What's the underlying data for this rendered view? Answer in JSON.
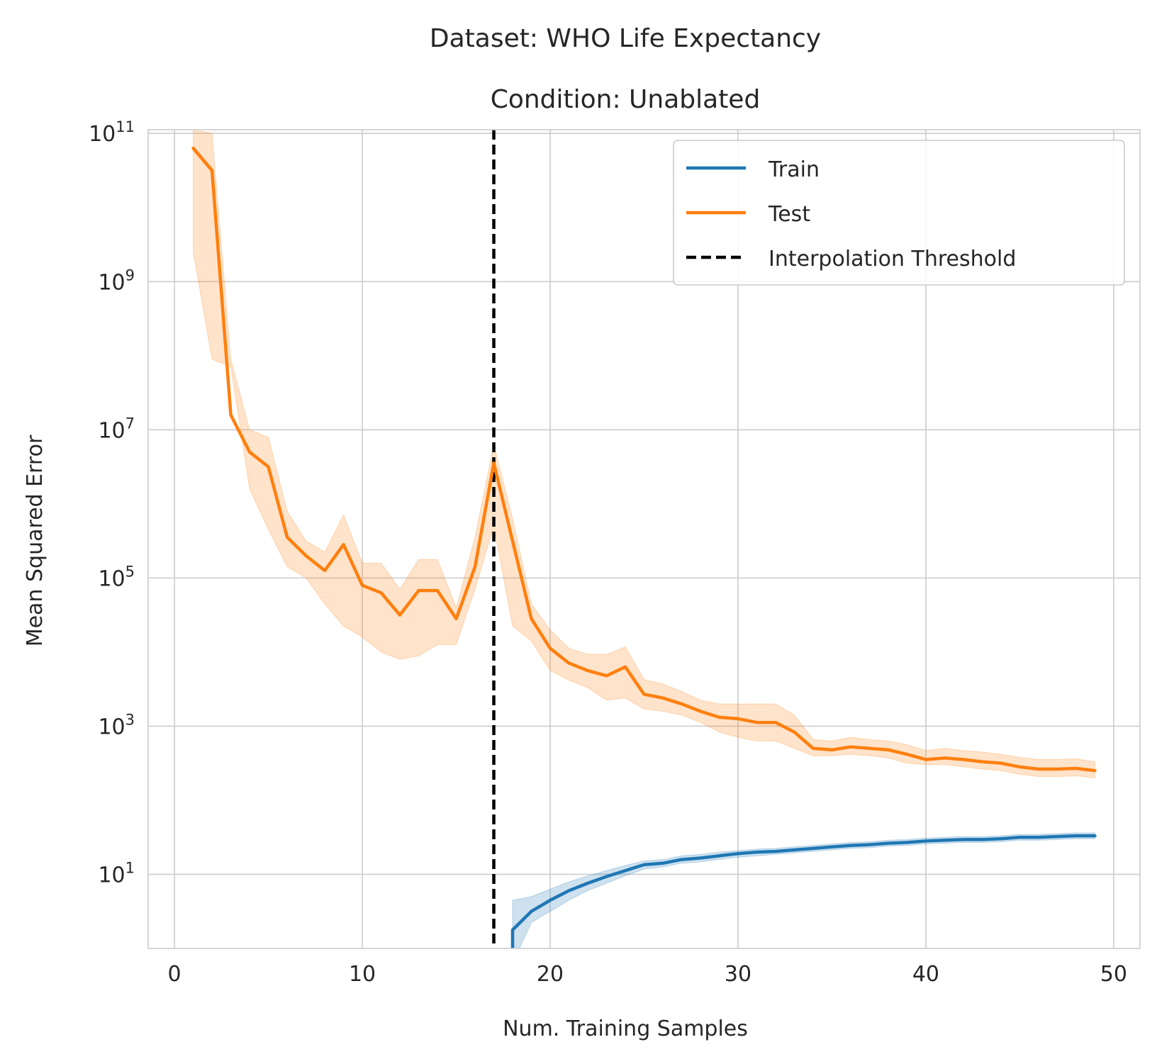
{
  "chart_data": {
    "type": "line",
    "title": "Dataset: WHO Life Expectancy",
    "subtitle": "Condition: Unablated",
    "xlabel": "Num. Training Samples",
    "ylabel": "Mean Squared Error",
    "xlim": [
      -1.4,
      51.4
    ],
    "ylim_log10": [
      0.0,
      11.05
    ],
    "yscale": "log",
    "grid": true,
    "legend_position": "top-right",
    "x_ticks": [
      0,
      10,
      20,
      30,
      40,
      50
    ],
    "y_ticks": [
      {
        "base": "10",
        "exp": "1",
        "log10": 1
      },
      {
        "base": "10",
        "exp": "3",
        "log10": 3
      },
      {
        "base": "10",
        "exp": "5",
        "log10": 5
      },
      {
        "base": "10",
        "exp": "7",
        "log10": 7
      },
      {
        "base": "10",
        "exp": "9",
        "log10": 9
      },
      {
        "base": "10",
        "exp": "11",
        "log10": 11
      }
    ],
    "threshold": {
      "name": "Interpolation Threshold",
      "x": 17,
      "color": "#000000"
    },
    "series": [
      {
        "name": "Train",
        "color": "#1f77b4",
        "x": [
          18,
          19,
          20,
          21,
          22,
          23,
          24,
          25,
          26,
          27,
          28,
          29,
          30,
          31,
          32,
          33,
          34,
          35,
          36,
          37,
          38,
          39,
          40,
          41,
          42,
          43,
          44,
          45,
          46,
          47,
          48,
          49
        ],
        "log10_mean": [
          0.25,
          0.5,
          0.65,
          0.78,
          0.88,
          0.97,
          1.05,
          1.13,
          1.15,
          1.2,
          1.22,
          1.25,
          1.28,
          1.3,
          1.31,
          1.33,
          1.35,
          1.37,
          1.39,
          1.4,
          1.42,
          1.43,
          1.45,
          1.46,
          1.47,
          1.47,
          1.48,
          1.5,
          1.5,
          1.51,
          1.52,
          1.52
        ],
        "log10_lower": [
          -0.2,
          0.35,
          0.5,
          0.65,
          0.78,
          0.88,
          0.98,
          1.07,
          1.1,
          1.15,
          1.17,
          1.2,
          1.23,
          1.25,
          1.27,
          1.29,
          1.31,
          1.33,
          1.35,
          1.36,
          1.38,
          1.39,
          1.41,
          1.42,
          1.43,
          1.43,
          1.44,
          1.46,
          1.46,
          1.47,
          1.48,
          1.48
        ],
        "log10_upper": [
          0.65,
          0.7,
          0.8,
          0.9,
          0.98,
          1.05,
          1.12,
          1.18,
          1.2,
          1.25,
          1.27,
          1.3,
          1.32,
          1.34,
          1.35,
          1.37,
          1.39,
          1.41,
          1.43,
          1.44,
          1.46,
          1.47,
          1.49,
          1.5,
          1.51,
          1.51,
          1.52,
          1.54,
          1.54,
          1.55,
          1.56,
          1.56
        ]
      },
      {
        "name": "Test",
        "color": "#ff7f0e",
        "x": [
          1,
          2,
          3,
          4,
          5,
          6,
          7,
          8,
          9,
          10,
          11,
          12,
          13,
          14,
          15,
          16,
          17,
          18,
          19,
          20,
          21,
          22,
          23,
          24,
          25,
          26,
          27,
          28,
          29,
          30,
          31,
          32,
          33,
          34,
          35,
          36,
          37,
          38,
          39,
          40,
          41,
          42,
          43,
          44,
          45,
          46,
          47,
          48,
          49
        ],
        "log10_mean": [
          10.8,
          10.5,
          7.2,
          6.7,
          6.5,
          5.55,
          5.3,
          5.1,
          5.45,
          4.9,
          4.8,
          4.5,
          4.83,
          4.83,
          4.45,
          5.15,
          6.55,
          5.5,
          4.45,
          4.05,
          3.85,
          3.75,
          3.68,
          3.8,
          3.43,
          3.38,
          3.3,
          3.2,
          3.12,
          3.1,
          3.05,
          3.05,
          2.92,
          2.7,
          2.68,
          2.72,
          2.7,
          2.68,
          2.62,
          2.55,
          2.57,
          2.55,
          2.52,
          2.5,
          2.45,
          2.42,
          2.42,
          2.43,
          2.4
        ],
        "log10_lower": [
          9.4,
          7.95,
          7.85,
          6.2,
          5.65,
          5.15,
          5.0,
          4.65,
          4.35,
          4.2,
          4.0,
          3.9,
          3.95,
          4.1,
          4.1,
          4.85,
          5.7,
          4.35,
          4.15,
          3.75,
          3.62,
          3.52,
          3.35,
          3.38,
          3.23,
          3.2,
          3.15,
          3.05,
          2.92,
          2.85,
          2.8,
          2.8,
          2.7,
          2.6,
          2.6,
          2.62,
          2.6,
          2.57,
          2.5,
          2.48,
          2.48,
          2.45,
          2.42,
          2.4,
          2.35,
          2.32,
          2.32,
          2.33,
          2.3
        ],
        "log10_upper": [
          11.05,
          11.0,
          7.95,
          7.0,
          6.9,
          5.9,
          5.5,
          5.35,
          5.85,
          5.2,
          5.2,
          4.85,
          5.25,
          5.25,
          4.6,
          5.55,
          6.8,
          5.8,
          4.65,
          4.3,
          4.05,
          3.97,
          3.97,
          4.07,
          3.63,
          3.57,
          3.47,
          3.35,
          3.3,
          3.3,
          3.3,
          3.3,
          3.15,
          2.82,
          2.8,
          2.85,
          2.82,
          2.8,
          2.75,
          2.67,
          2.7,
          2.67,
          2.65,
          2.62,
          2.58,
          2.55,
          2.55,
          2.56,
          2.52
        ]
      }
    ]
  }
}
